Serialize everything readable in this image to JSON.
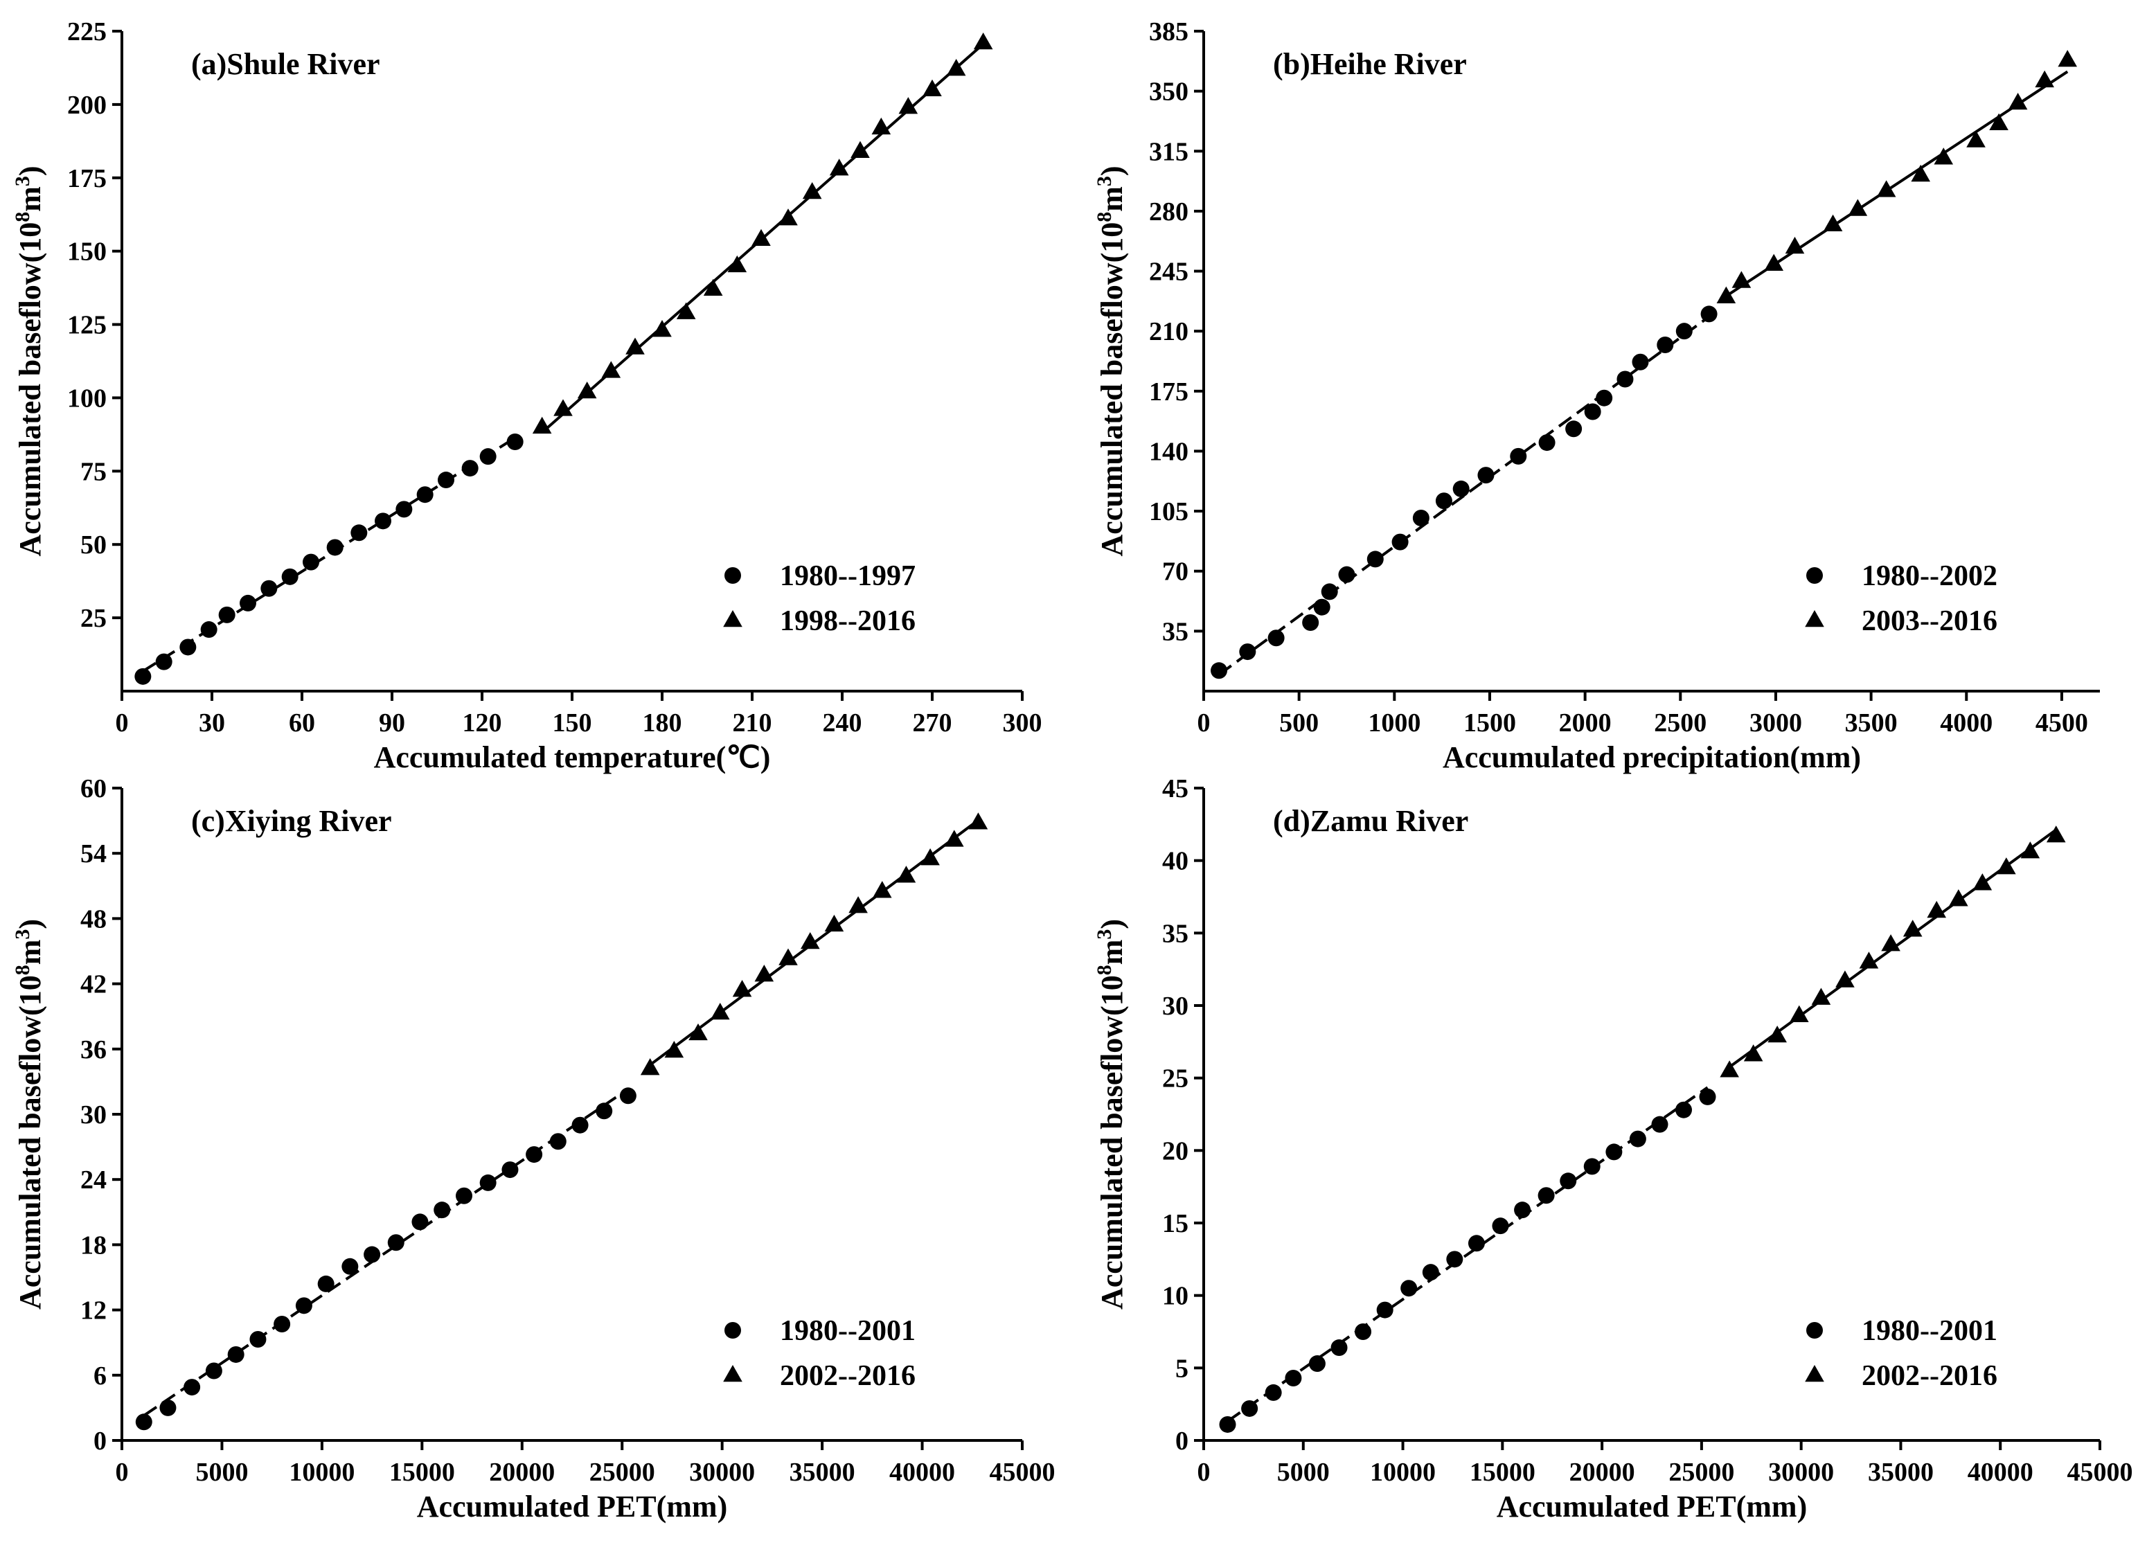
{
  "chart_data": [
    {
      "type": "scatter",
      "title": "(a)Shule River",
      "xlabel": "Accumulated temperature(℃)",
      "ylabel": "Accumulated baseflow(10^8m^3)",
      "ylabel_parts": {
        "main": "Accumulated baseflow(10",
        "exp1": "8",
        "mid": "m",
        "exp2": "3",
        "end": ")"
      },
      "xlim": [
        0,
        300
      ],
      "ylim": [
        0,
        225
      ],
      "xticks": [
        0,
        30,
        60,
        90,
        120,
        150,
        180,
        210,
        240,
        270,
        300
      ],
      "yticks": [
        25,
        50,
        75,
        100,
        125,
        150,
        175,
        200,
        225
      ],
      "legend_position": "bottom-right",
      "series": [
        {
          "name": "1980--1997",
          "marker": "circle",
          "fit": "dashed",
          "points": [
            [
              7,
              5
            ],
            [
              14,
              10
            ],
            [
              22,
              15
            ],
            [
              29,
              21
            ],
            [
              35,
              26
            ],
            [
              42,
              30
            ],
            [
              49,
              35
            ],
            [
              56,
              39
            ],
            [
              63,
              44
            ],
            [
              71,
              49
            ],
            [
              79,
              54
            ],
            [
              87,
              58
            ],
            [
              94,
              62
            ],
            [
              101,
              67
            ],
            [
              108,
              72
            ],
            [
              116,
              76
            ],
            [
              122,
              80
            ],
            [
              131,
              85
            ]
          ]
        },
        {
          "name": "1998--2016",
          "marker": "triangle",
          "fit": "solid",
          "points": [
            [
              140,
              90
            ],
            [
              147,
              96
            ],
            [
              155,
              102
            ],
            [
              163,
              109
            ],
            [
              171,
              117
            ],
            [
              180,
              123
            ],
            [
              188,
              129
            ],
            [
              197,
              137
            ],
            [
              205,
              145
            ],
            [
              213,
              154
            ],
            [
              222,
              161
            ],
            [
              230,
              170
            ],
            [
              239,
              178
            ],
            [
              246,
              184
            ],
            [
              253,
              192
            ],
            [
              262,
              199
            ],
            [
              270,
              205
            ],
            [
              278,
              212
            ],
            [
              287,
              221
            ]
          ]
        }
      ]
    },
    {
      "type": "scatter",
      "title": "(b)Heihe River",
      "xlabel": "Accumulated precipitation(mm)",
      "ylabel": "Accumulated baseflow(10^8m^3)",
      "ylabel_parts": {
        "main": "Accumulated baseflow(10",
        "exp1": "8",
        "mid": "m",
        "exp2": "3",
        "end": ")"
      },
      "xlim": [
        0,
        4700
      ],
      "ylim": [
        0,
        385
      ],
      "xticks": [
        0,
        500,
        1000,
        1500,
        2000,
        2500,
        3000,
        3500,
        4000,
        4500
      ],
      "yticks": [
        35,
        70,
        105,
        140,
        175,
        210,
        245,
        280,
        315,
        350,
        385
      ],
      "legend_position": "bottom-right",
      "series": [
        {
          "name": "1980--2002",
          "marker": "circle",
          "fit": "dashed",
          "points": [
            [
              80,
              12
            ],
            [
              230,
              23
            ],
            [
              380,
              31
            ],
            [
              560,
              40
            ],
            [
              620,
              49
            ],
            [
              660,
              58
            ],
            [
              750,
              68
            ],
            [
              900,
              77
            ],
            [
              1030,
              87
            ],
            [
              1140,
              101
            ],
            [
              1260,
              111
            ],
            [
              1350,
              118
            ],
            [
              1480,
              126
            ],
            [
              1650,
              137
            ],
            [
              1800,
              145
            ],
            [
              1940,
              153
            ],
            [
              2040,
              163
            ],
            [
              2100,
              171
            ],
            [
              2210,
              182
            ],
            [
              2290,
              192
            ],
            [
              2420,
              202
            ],
            [
              2520,
              210
            ],
            [
              2650,
              220
            ]
          ]
        },
        {
          "name": "2003--2016",
          "marker": "triangle",
          "fit": "solid",
          "points": [
            [
              2740,
              230
            ],
            [
              2820,
              239
            ],
            [
              2990,
              249
            ],
            [
              3100,
              259
            ],
            [
              3300,
              272
            ],
            [
              3430,
              281
            ],
            [
              3580,
              292
            ],
            [
              3760,
              301
            ],
            [
              3880,
              311
            ],
            [
              4050,
              321
            ],
            [
              4170,
              331
            ],
            [
              4270,
              343
            ],
            [
              4410,
              356
            ],
            [
              4530,
              368
            ]
          ]
        }
      ]
    },
    {
      "type": "scatter",
      "title": "(c)Xiying River",
      "xlabel": "Accumulated PET(mm)",
      "ylabel": "Accumulated baseflow(10^8m^3)",
      "ylabel_parts": {
        "main": "Accumulated baseflow(10",
        "exp1": "8",
        "mid": "m",
        "exp2": "3",
        "end": ")"
      },
      "xlim": [
        0,
        45000
      ],
      "ylim": [
        0,
        60
      ],
      "xticks": [
        0,
        5000,
        10000,
        15000,
        20000,
        25000,
        30000,
        35000,
        40000,
        45000
      ],
      "yticks": [
        0,
        6,
        12,
        18,
        24,
        30,
        36,
        42,
        48,
        54,
        60
      ],
      "legend_position": "bottom-right",
      "series": [
        {
          "name": "1980--2001",
          "marker": "circle",
          "fit": "dashed",
          "points": [
            [
              1100,
              1.7
            ],
            [
              2300,
              3
            ],
            [
              3500,
              4.9
            ],
            [
              4600,
              6.4
            ],
            [
              5700,
              7.9
            ],
            [
              6800,
              9.3
            ],
            [
              8000,
              10.7
            ],
            [
              9100,
              12.4
            ],
            [
              10200,
              14.4
            ],
            [
              11400,
              16
            ],
            [
              12500,
              17.1
            ],
            [
              13700,
              18.2
            ],
            [
              14900,
              20.1
            ],
            [
              16000,
              21.2
            ],
            [
              17100,
              22.5
            ],
            [
              18300,
              23.7
            ],
            [
              19400,
              24.9
            ],
            [
              20600,
              26.3
            ],
            [
              21800,
              27.5
            ],
            [
              22900,
              29
            ],
            [
              24100,
              30.3
            ],
            [
              25300,
              31.7
            ]
          ]
        },
        {
          "name": "2002--2016",
          "marker": "triangle",
          "fit": "solid",
          "points": [
            [
              26400,
              34.2
            ],
            [
              27600,
              35.8
            ],
            [
              28800,
              37.4
            ],
            [
              29900,
              39.3
            ],
            [
              31000,
              41.4
            ],
            [
              32100,
              42.8
            ],
            [
              33300,
              44.3
            ],
            [
              34400,
              45.8
            ],
            [
              35600,
              47.4
            ],
            [
              36800,
              49.1
            ],
            [
              38000,
              50.5
            ],
            [
              39200,
              51.9
            ],
            [
              40400,
              53.5
            ],
            [
              41600,
              55.2
            ],
            [
              42800,
              56.8
            ]
          ]
        }
      ]
    },
    {
      "type": "scatter",
      "title": "(d)Zamu River",
      "xlabel": "Accumulated PET(mm)",
      "ylabel": "Accumulated baseflow(10^8m^3)",
      "ylabel_parts": {
        "main": "Accumulated baseflow(10",
        "exp1": "8",
        "mid": "m",
        "exp2": "3",
        "end": ")"
      },
      "xlim": [
        0,
        45000
      ],
      "ylim": [
        0,
        45
      ],
      "xticks": [
        0,
        5000,
        10000,
        15000,
        20000,
        25000,
        30000,
        35000,
        40000,
        45000
      ],
      "yticks": [
        0,
        5,
        10,
        15,
        20,
        25,
        30,
        35,
        40,
        45
      ],
      "legend_position": "bottom-right",
      "series": [
        {
          "name": "1980--2001",
          "marker": "circle",
          "fit": "dashed",
          "points": [
            [
              1200,
              1.1
            ],
            [
              2300,
              2.2
            ],
            [
              3500,
              3.3
            ],
            [
              4500,
              4.3
            ],
            [
              5700,
              5.3
            ],
            [
              6800,
              6.4
            ],
            [
              8000,
              7.5
            ],
            [
              9100,
              9
            ],
            [
              10300,
              10.5
            ],
            [
              11400,
              11.6
            ],
            [
              12600,
              12.5
            ],
            [
              13700,
              13.6
            ],
            [
              14900,
              14.8
            ],
            [
              16000,
              15.9
            ],
            [
              17200,
              16.9
            ],
            [
              18300,
              17.9
            ],
            [
              19500,
              18.9
            ],
            [
              20600,
              19.9
            ],
            [
              21800,
              20.8
            ],
            [
              22900,
              21.8
            ],
            [
              24100,
              22.8
            ],
            [
              25300,
              23.7
            ]
          ]
        },
        {
          "name": "2002--2016",
          "marker": "triangle",
          "fit": "solid",
          "points": [
            [
              26400,
              25.5
            ],
            [
              27600,
              26.6
            ],
            [
              28800,
              27.9
            ],
            [
              29900,
              29.3
            ],
            [
              31000,
              30.5
            ],
            [
              32200,
              31.7
            ],
            [
              33400,
              33
            ],
            [
              34500,
              34.2
            ],
            [
              35600,
              35.2
            ],
            [
              36800,
              36.5
            ],
            [
              37900,
              37.3
            ],
            [
              39100,
              38.4
            ],
            [
              40300,
              39.5
            ],
            [
              41500,
              40.6
            ],
            [
              42800,
              41.7
            ]
          ]
        }
      ]
    }
  ]
}
